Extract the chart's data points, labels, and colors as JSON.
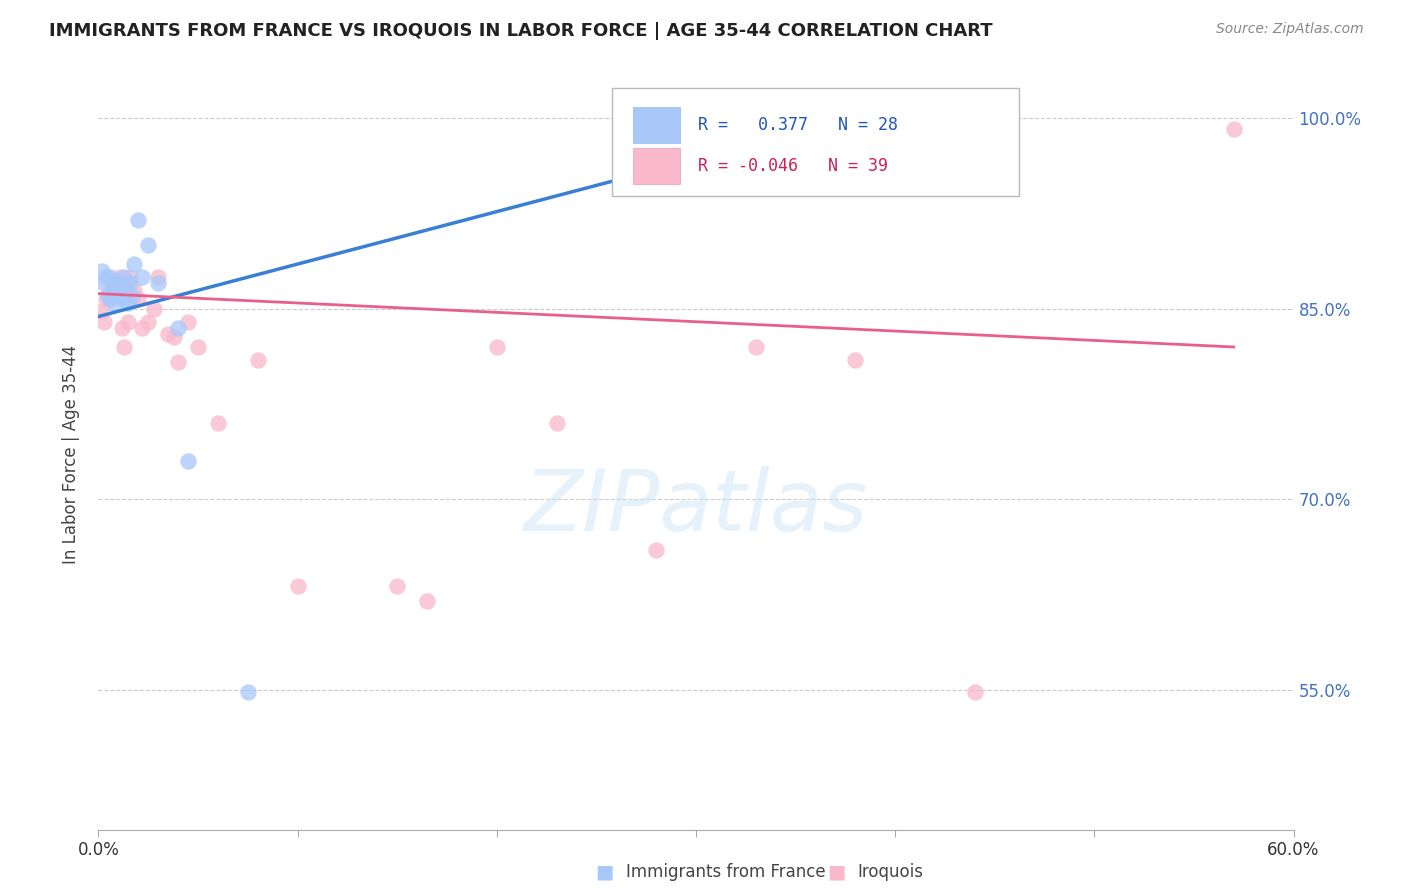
{
  "title": "IMMIGRANTS FROM FRANCE VS IROQUOIS IN LABOR FORCE | AGE 35-44 CORRELATION CHART",
  "source": "Source: ZipAtlas.com",
  "ylabel": "In Labor Force | Age 35-44",
  "xlim": [
    0.0,
    0.6
  ],
  "ylim": [
    0.44,
    1.03
  ],
  "xticks": [
    0.0,
    0.1,
    0.2,
    0.3,
    0.4,
    0.5,
    0.6
  ],
  "xticklabels": [
    "0.0%",
    "",
    "",
    "",
    "",
    "",
    "60.0%"
  ],
  "ytick_positions": [
    0.55,
    0.7,
    0.85,
    1.0
  ],
  "ytick_labels_right": [
    "55.0%",
    "70.0%",
    "85.0%",
    "100.0%"
  ],
  "legend_r_france": "0.377",
  "legend_n_france": "28",
  "legend_r_iroquois": "-0.046",
  "legend_n_iroquois": "39",
  "france_color": "#a8c8fa",
  "iroquois_color": "#f9b8cc",
  "france_line_color": "#3a7fd5",
  "iroquois_line_color": "#e8608a",
  "background_color": "#ffffff",
  "grid_color": "#cccccc",
  "france_x": [
    0.002,
    0.003,
    0.004,
    0.005,
    0.006,
    0.006,
    0.007,
    0.007,
    0.008,
    0.009,
    0.01,
    0.01,
    0.011,
    0.012,
    0.013,
    0.014,
    0.015,
    0.016,
    0.017,
    0.018,
    0.02,
    0.022,
    0.025,
    0.03,
    0.04,
    0.045,
    0.075,
    0.31
  ],
  "france_y": [
    0.88,
    0.87,
    0.875,
    0.86,
    0.858,
    0.875,
    0.862,
    0.87,
    0.855,
    0.868,
    0.872,
    0.86,
    0.865,
    0.858,
    0.875,
    0.87,
    0.855,
    0.87,
    0.86,
    0.885,
    0.92,
    0.875,
    0.9,
    0.87,
    0.835,
    0.73,
    0.548,
    0.972
  ],
  "iroquois_x": [
    0.002,
    0.003,
    0.004,
    0.005,
    0.006,
    0.007,
    0.008,
    0.009,
    0.01,
    0.011,
    0.012,
    0.013,
    0.014,
    0.015,
    0.016,
    0.017,
    0.018,
    0.02,
    0.022,
    0.025,
    0.028,
    0.03,
    0.035,
    0.038,
    0.04,
    0.045,
    0.05,
    0.06,
    0.08,
    0.1,
    0.15,
    0.165,
    0.2,
    0.23,
    0.28,
    0.33,
    0.38,
    0.44,
    0.57
  ],
  "iroquois_y": [
    0.848,
    0.84,
    0.858,
    0.862,
    0.858,
    0.87,
    0.868,
    0.872,
    0.865,
    0.875,
    0.835,
    0.82,
    0.865,
    0.84,
    0.875,
    0.858,
    0.865,
    0.858,
    0.835,
    0.84,
    0.85,
    0.875,
    0.83,
    0.828,
    0.808,
    0.84,
    0.82,
    0.76,
    0.81,
    0.632,
    0.632,
    0.62,
    0.82,
    0.76,
    0.66,
    0.82,
    0.81,
    0.548,
    0.992
  ],
  "france_trendline_x": [
    0.0,
    0.31
  ],
  "france_trendline_y": [
    0.844,
    0.972
  ],
  "iroquois_trendline_x": [
    0.0,
    0.57
  ],
  "iroquois_trendline_y": [
    0.862,
    0.82
  ]
}
